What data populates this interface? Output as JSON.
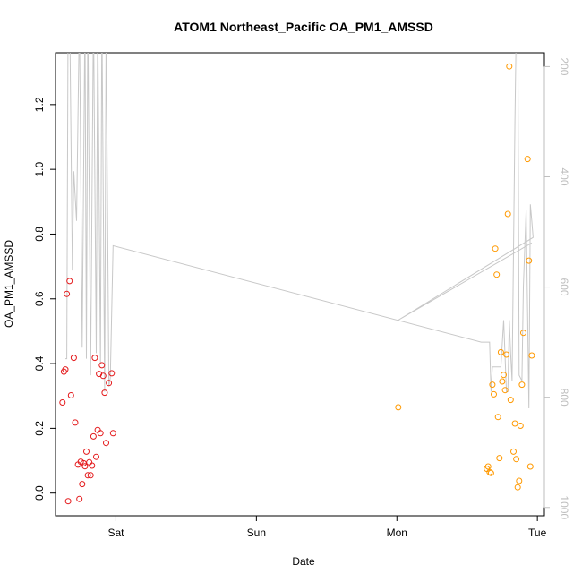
{
  "chart_data": {
    "type": "scatter",
    "title": "ATOM1 Northeast_Pacific OA_PM1_AMSSD",
    "xlabel": "Date",
    "ylabel": "OA_PM1_AMSSD",
    "x_ticks": [
      {
        "label": "Sat",
        "day": 1.0
      },
      {
        "label": "Sun",
        "day": 2.0
      },
      {
        "label": "Mon",
        "day": 3.0
      },
      {
        "label": "Tue",
        "day": 4.0
      }
    ],
    "xlim": [
      0.57,
      4.05
    ],
    "ylim": [
      -0.07,
      1.36
    ],
    "y_ticks": [
      0.0,
      0.2,
      0.4,
      0.6,
      0.8,
      1.0,
      1.2
    ],
    "y2_ticks": [
      200,
      400,
      600,
      800,
      1000
    ],
    "y2lim": [
      1015,
      175
    ],
    "y2_inverted": true,
    "series": [
      {
        "color": "#e41a1c",
        "marker": "open-circle",
        "points": [
          [
            0.62,
            0.28
          ],
          [
            0.63,
            0.375
          ],
          [
            0.64,
            0.382
          ],
          [
            0.65,
            0.615
          ],
          [
            0.66,
            -0.025
          ],
          [
            0.67,
            0.655
          ],
          [
            0.68,
            0.302
          ],
          [
            0.7,
            0.418
          ],
          [
            0.71,
            0.218
          ],
          [
            0.73,
            0.088
          ],
          [
            0.74,
            -0.018
          ],
          [
            0.75,
            0.097
          ],
          [
            0.76,
            0.028
          ],
          [
            0.77,
            0.092
          ],
          [
            0.78,
            0.083
          ],
          [
            0.79,
            0.128
          ],
          [
            0.8,
            0.055
          ],
          [
            0.81,
            0.095
          ],
          [
            0.82,
            0.055
          ],
          [
            0.83,
            0.085
          ],
          [
            0.84,
            0.175
          ],
          [
            0.85,
            0.418
          ],
          [
            0.86,
            0.112
          ],
          [
            0.87,
            0.195
          ],
          [
            0.88,
            0.368
          ],
          [
            0.89,
            0.185
          ],
          [
            0.9,
            0.395
          ],
          [
            0.91,
            0.362
          ],
          [
            0.92,
            0.31
          ],
          [
            0.93,
            0.155
          ],
          [
            0.95,
            0.34
          ],
          [
            0.97,
            0.37
          ],
          [
            0.98,
            0.185
          ]
        ]
      },
      {
        "color": "#ff9900",
        "marker": "open-circle",
        "points": [
          [
            3.01,
            0.265
          ],
          [
            3.64,
            0.075
          ],
          [
            3.65,
            0.082
          ],
          [
            3.66,
            0.065
          ],
          [
            3.67,
            0.062
          ],
          [
            3.68,
            0.335
          ],
          [
            3.69,
            0.305
          ],
          [
            3.7,
            0.755
          ],
          [
            3.71,
            0.675
          ],
          [
            3.72,
            0.235
          ],
          [
            3.73,
            0.108
          ],
          [
            3.74,
            0.435
          ],
          [
            3.75,
            0.345
          ],
          [
            3.76,
            0.365
          ],
          [
            3.77,
            0.318
          ],
          [
            3.78,
            0.428
          ],
          [
            3.79,
            0.862
          ],
          [
            3.8,
            1.318
          ],
          [
            3.81,
            0.288
          ],
          [
            3.83,
            0.128
          ],
          [
            3.84,
            0.215
          ],
          [
            3.85,
            0.105
          ],
          [
            3.86,
            0.018
          ],
          [
            3.87,
            0.038
          ],
          [
            3.88,
            0.208
          ],
          [
            3.89,
            0.335
          ],
          [
            3.9,
            0.495
          ],
          [
            3.93,
            1.032
          ],
          [
            3.94,
            0.718
          ],
          [
            3.95,
            0.082
          ],
          [
            3.96,
            0.425
          ]
        ]
      }
    ],
    "altitude_series": {
      "axis": "right",
      "color": "#c8c8c8",
      "points": [
        [
          0.64,
          730
        ],
        [
          0.65,
          730
        ],
        [
          0.66,
          80
        ],
        [
          0.67,
          80
        ],
        [
          0.69,
          570
        ],
        [
          0.7,
          390
        ],
        [
          0.72,
          480
        ],
        [
          0.74,
          100
        ],
        [
          0.76,
          710
        ],
        [
          0.78,
          100
        ],
        [
          0.79,
          730
        ],
        [
          0.8,
          100
        ],
        [
          0.82,
          760
        ],
        [
          0.84,
          100
        ],
        [
          0.86,
          720
        ],
        [
          0.87,
          100
        ],
        [
          0.89,
          740
        ],
        [
          0.9,
          100
        ],
        [
          0.92,
          790
        ],
        [
          0.93,
          120
        ],
        [
          0.95,
          780
        ],
        [
          0.96,
          765
        ],
        [
          0.98,
          525
        ],
        [
          3.6,
          700
        ],
        [
          3.66,
          700
        ],
        [
          3.67,
          790
        ],
        [
          3.68,
          745
        ],
        [
          3.74,
          745
        ],
        [
          3.76,
          660
        ],
        [
          3.78,
          790
        ],
        [
          3.79,
          790
        ],
        [
          3.8,
          660
        ],
        [
          3.81,
          720
        ],
        [
          3.82,
          770
        ],
        [
          3.84,
          300
        ],
        [
          3.85,
          120
        ],
        [
          3.86,
          80
        ],
        [
          3.87,
          760
        ],
        [
          3.89,
          770
        ],
        [
          3.9,
          600
        ],
        [
          3.92,
          460
        ],
        [
          3.94,
          820
        ],
        [
          3.95,
          450
        ],
        [
          3.96,
          480
        ],
        [
          3.97,
          510
        ],
        [
          3.01,
          660
        ],
        [
          3.96,
          520
        ]
      ]
    },
    "grid": false,
    "legend": "none"
  }
}
